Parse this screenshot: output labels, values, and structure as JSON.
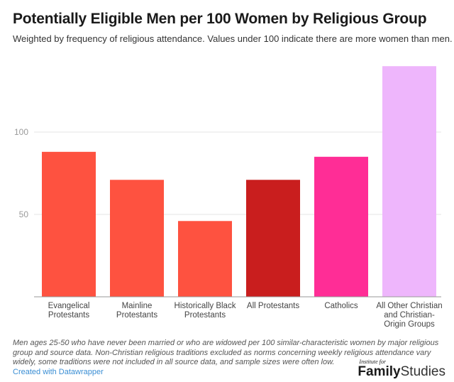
{
  "header": {
    "title": "Potentially Eligible Men per 100 Women by Religious Group",
    "subtitle": "Weighted by frequency of religious attendance. Values under 100 indicate there are more women than men."
  },
  "chart_data": {
    "type": "bar",
    "title": "Potentially Eligible Men per 100 Women by Religious Group",
    "subtitle": "Weighted by frequency of religious attendance. Values under 100 indicate there are more women than men.",
    "xlabel": "",
    "ylabel": "",
    "ylim": [
      0,
      100
    ],
    "yticks": [
      50,
      100
    ],
    "grid": true,
    "categories": [
      [
        "Evangelical",
        "Protestants"
      ],
      [
        "Mainline",
        "Protestants"
      ],
      [
        "Historically Black",
        "Protestants"
      ],
      [
        "All Protestants"
      ],
      [
        "Catholics"
      ],
      [
        "All Other Christian",
        "and Christian-",
        "Origin Groups"
      ]
    ],
    "category_names": [
      "Evangelical Protestants",
      "Mainline Protestants",
      "Historically Black Protestants",
      "All Protestants",
      "Catholics",
      "All Other Christian and Christian-Origin Groups"
    ],
    "values": [
      88,
      71,
      46,
      71,
      85,
      140
    ],
    "colors": [
      "#fe5240",
      "#fe5240",
      "#fe5240",
      "#c91e1e",
      "#ff2d96",
      "#eeb6fc"
    ]
  },
  "footer": {
    "notes": "Men ages 25-50 who have never been married or who are widowed per 100 similar-characteristic women by major religious group and source data. Non-Christian religious traditions excluded as norms concerning weekly religious attendance vary widely, some traditions were not included in all source data, and sample sizes were often low.",
    "credit": "Created with Datawrapper",
    "logo_small": "Institute for",
    "logo_bold": "Family",
    "logo_light": "Studies"
  }
}
